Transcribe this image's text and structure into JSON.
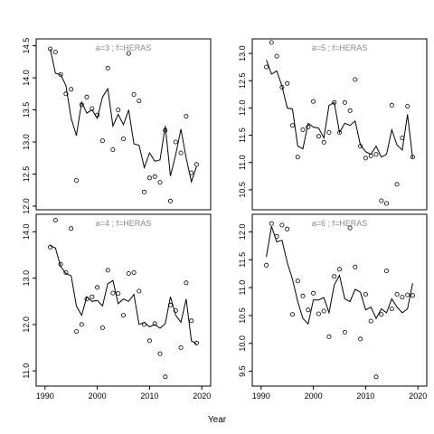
{
  "chart_data": {
    "type": "scatter",
    "xlabel": "Year",
    "x": [
      1991,
      1992,
      1993,
      1994,
      1995,
      1996,
      1997,
      1998,
      1999,
      2000,
      2001,
      2002,
      2003,
      2004,
      2005,
      2006,
      2007,
      2008,
      2009,
      2010,
      2011,
      2012,
      2013,
      2014,
      2015,
      2016,
      2017,
      2018,
      2019
    ],
    "xlim": [
      1989,
      2021
    ],
    "xticks": [
      1990,
      2000,
      2010,
      2020
    ],
    "panels": [
      {
        "title": "a=3 ; f=HERAS",
        "ylim": [
          12.0,
          14.55
        ],
        "yticks": [
          "12.0",
          "12.5",
          "13.0",
          "13.5",
          "14.0",
          "14.5"
        ],
        "points": [
          14.45,
          14.4,
          14.05,
          13.75,
          13.82,
          12.4,
          13.58,
          13.7,
          13.52,
          13.42,
          13.02,
          14.15,
          12.88,
          13.5,
          13.05,
          14.38,
          13.74,
          13.64,
          12.22,
          12.44,
          12.46,
          12.37,
          13.18,
          12.08,
          13.0,
          12.83,
          13.4,
          12.52,
          12.65
        ],
        "line": [
          14.45,
          14.07,
          14.05,
          13.88,
          13.37,
          13.1,
          13.62,
          13.45,
          13.5,
          13.37,
          13.7,
          13.83,
          13.25,
          13.43,
          13.27,
          13.5,
          12.97,
          12.95,
          12.6,
          12.83,
          12.7,
          12.72,
          13.25,
          12.47,
          12.8,
          13.2,
          12.75,
          12.38,
          12.62
        ]
      },
      {
        "title": "a=5 ; f=HERAS",
        "ylim": [
          10.2,
          13.2
        ],
        "yticks": [
          "10.5",
          "11.0",
          "11.5",
          "12.0",
          "12.5",
          "13.0"
        ],
        "points": [
          12.75,
          13.2,
          12.95,
          12.38,
          12.45,
          11.68,
          11.1,
          11.6,
          11.65,
          12.12,
          11.48,
          11.37,
          11.55,
          12.1,
          11.55,
          12.1,
          11.95,
          12.52,
          11.3,
          11.08,
          11.12,
          11.15,
          10.3,
          10.25,
          12.05,
          10.6,
          11.45,
          12.03,
          11.1
        ],
        "line": [
          12.88,
          12.62,
          12.68,
          12.4,
          12.0,
          11.98,
          11.3,
          11.25,
          11.72,
          11.65,
          11.63,
          11.45,
          12.05,
          12.1,
          11.55,
          11.72,
          11.68,
          11.76,
          11.32,
          11.2,
          11.15,
          11.3,
          11.1,
          11.15,
          11.6,
          11.32,
          11.23,
          11.88,
          11.08
        ]
      },
      {
        "title": "a=4 ; f=HERAS",
        "ylim": [
          10.75,
          14.3
        ],
        "yticks": [
          "11.0",
          "12.0",
          "13.0",
          "14.0"
        ],
        "points": [
          13.67,
          14.25,
          13.3,
          13.12,
          14.07,
          11.85,
          12.0,
          12.55,
          12.6,
          12.8,
          11.93,
          13.17,
          12.68,
          12.67,
          12.2,
          13.1,
          13.12,
          12.72,
          12.0,
          11.65,
          12.02,
          11.37,
          10.87,
          12.42,
          12.3,
          11.5,
          12.9,
          12.08,
          11.6
        ],
        "line": [
          13.7,
          13.65,
          13.25,
          13.1,
          13.05,
          12.4,
          12.2,
          12.6,
          12.5,
          12.52,
          12.4,
          12.88,
          12.95,
          12.45,
          12.55,
          12.5,
          12.65,
          12.0,
          12.05,
          11.95,
          12.0,
          11.92,
          12.02,
          12.6,
          12.2,
          12.05,
          12.55,
          11.65,
          11.58
        ]
      },
      {
        "title": "a=6 ; f=HERAS",
        "ylim": [
          9.3,
          12.25
        ],
        "yticks": [
          "9.5",
          "10.0",
          "10.5",
          "11.0",
          "11.5",
          "12.0"
        ],
        "points": [
          11.4,
          12.15,
          11.92,
          12.12,
          12.05,
          10.52,
          11.12,
          10.85,
          10.6,
          10.9,
          10.53,
          10.58,
          10.12,
          11.2,
          11.33,
          10.2,
          12.07,
          11.37,
          10.08,
          10.88,
          10.4,
          9.4,
          10.52,
          11.3,
          10.62,
          10.88,
          10.83,
          10.87,
          10.86
        ],
        "line": [
          11.55,
          12.1,
          11.82,
          11.85,
          11.45,
          11.15,
          10.75,
          10.45,
          10.35,
          10.78,
          10.78,
          10.82,
          10.55,
          11.05,
          11.22,
          10.8,
          10.75,
          10.97,
          10.92,
          10.6,
          10.65,
          10.45,
          10.62,
          10.55,
          10.8,
          10.65,
          10.55,
          10.62,
          11.08
        ]
      }
    ]
  }
}
